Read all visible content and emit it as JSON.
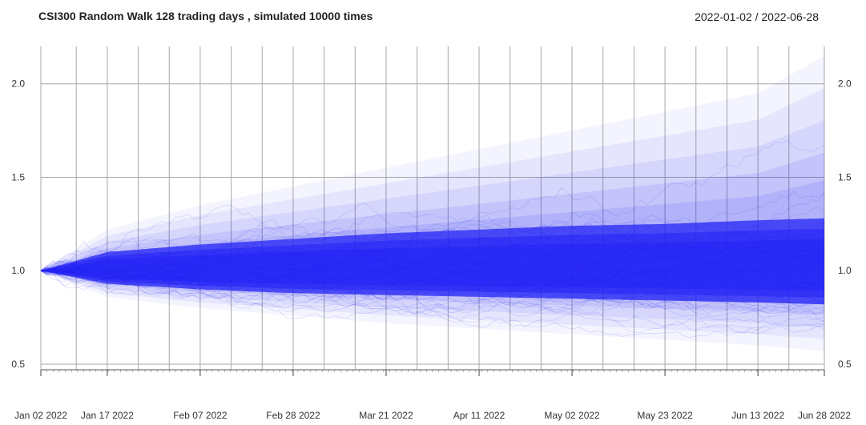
{
  "header": {
    "title": "CSI300 Random Walk 128 trading days , simulated 10000 times",
    "date_range": "2022-01-02 / 2022-06-28"
  },
  "chart_data": {
    "type": "line",
    "title": "CSI300 Random Walk 128 trading days , simulated 10000 times",
    "subtitle": "2022-01-02 / 2022-06-28",
    "x_start": "2022-01-02",
    "x_end": "2022-06-28",
    "trading_days": 128,
    "simulations": 10000,
    "start_value": 1.0,
    "ylim": [
      0.5,
      2.2
    ],
    "y_ticks": [
      0.5,
      1.0,
      1.5,
      2.0
    ],
    "y_tick_labels": [
      "0.5",
      "1.0",
      "1.5",
      "2.0"
    ],
    "x_ticks": [
      "2022-01-02",
      "2022-01-17",
      "2022-02-07",
      "2022-02-28",
      "2022-03-21",
      "2022-04-11",
      "2022-05-02",
      "2022-05-23",
      "2022-06-13",
      "2022-06-28"
    ],
    "x_tick_labels": [
      "Jan 02 2022",
      "Jan 17 2022",
      "Feb 07 2022",
      "Feb 28 2022",
      "Mar 21 2022",
      "Apr 11 2022",
      "May 02 2022",
      "May 23 2022",
      "Jun 13 2022",
      "Jun 28 2022"
    ],
    "x_gridlines": [
      "2022-01-02",
      "2022-01-10",
      "2022-01-17",
      "2022-01-24",
      "2022-01-31",
      "2022-02-07",
      "2022-02-14",
      "2022-02-21",
      "2022-02-28",
      "2022-03-07",
      "2022-03-14",
      "2022-03-21",
      "2022-03-28",
      "2022-04-04",
      "2022-04-11",
      "2022-04-18",
      "2022-04-25",
      "2022-05-02",
      "2022-05-09",
      "2022-05-16",
      "2022-05-23",
      "2022-05-30",
      "2022-06-06",
      "2022-06-13",
      "2022-06-20",
      "2022-06-28"
    ],
    "envelope": {
      "x": [
        "2022-01-02",
        "2022-01-17",
        "2022-02-07",
        "2022-02-28",
        "2022-03-21",
        "2022-04-11",
        "2022-05-02",
        "2022-05-23",
        "2022-06-13",
        "2022-06-28"
      ],
      "upper_outer": [
        1.0,
        1.22,
        1.35,
        1.45,
        1.55,
        1.65,
        1.75,
        1.85,
        1.95,
        2.15
      ],
      "upper_dense": [
        1.0,
        1.1,
        1.14,
        1.17,
        1.2,
        1.22,
        1.24,
        1.25,
        1.27,
        1.28
      ],
      "lower_dense": [
        1.0,
        0.93,
        0.9,
        0.88,
        0.87,
        0.86,
        0.85,
        0.84,
        0.83,
        0.82
      ],
      "lower_outer": [
        1.0,
        0.86,
        0.8,
        0.76,
        0.72,
        0.69,
        0.66,
        0.63,
        0.6,
        0.57
      ]
    },
    "series_color": "#2424f5",
    "grid": true,
    "legend": "none"
  }
}
